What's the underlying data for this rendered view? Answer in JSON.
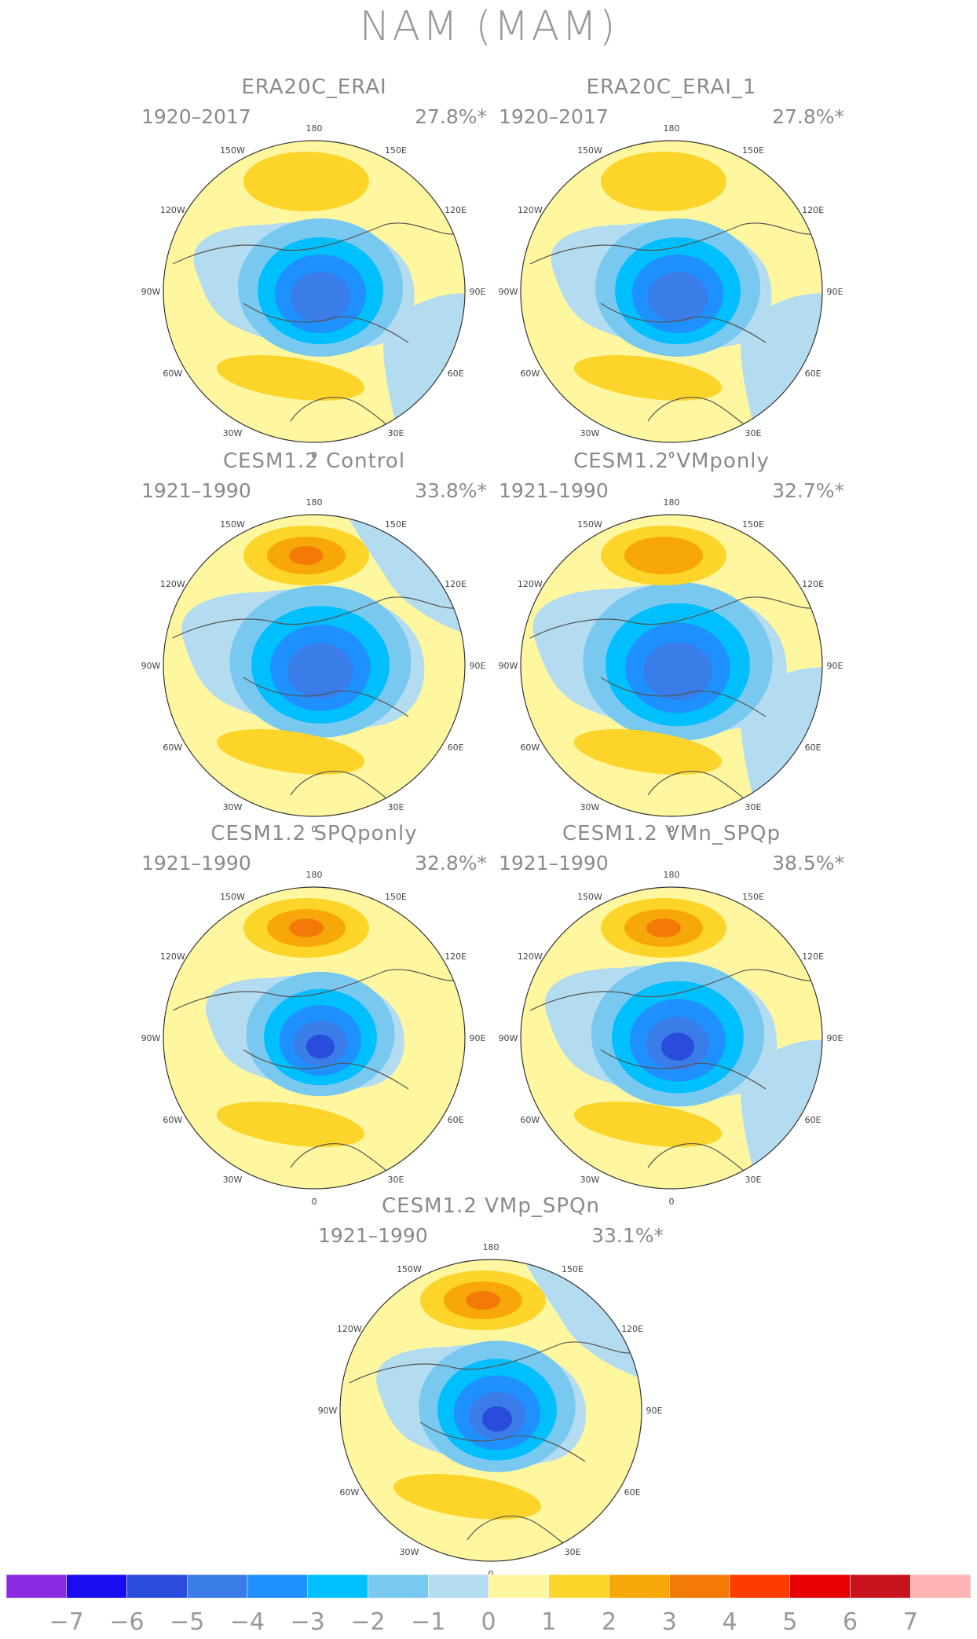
{
  "title": "NAM (MAM)",
  "lon_labels": [
    "180",
    "150E",
    "120E",
    "90E",
    "60E",
    "30E",
    "0",
    "30W",
    "60W",
    "90W",
    "120W",
    "150W"
  ],
  "panels": [
    {
      "title": "ERA20C_ERAI",
      "years": "1920–2017",
      "variance": "27.8%*",
      "pos_anomaly": 1.9,
      "blue_extent": 1.0,
      "neg_min": -4.4,
      "bluefield": "atlantic"
    },
    {
      "title": "ERA20C_ERAI_1",
      "years": "1920–2017",
      "variance": "27.8%*",
      "pos_anomaly": 1.9,
      "blue_extent": 1.0,
      "neg_min": -4.4,
      "bluefield": "atlantic"
    },
    {
      "title": "CESM1.2 Control",
      "years": "1921–1990",
      "variance": "33.8%*",
      "pos_anomaly": 3.3,
      "blue_extent": 1.1,
      "neg_min": -4.6,
      "bluefield": "pacific"
    },
    {
      "title": "CESM1.2 VMponly",
      "years": "1921–1990",
      "variance": "32.7%*",
      "pos_anomaly": 2.4,
      "blue_extent": 1.15,
      "neg_min": -4.8,
      "bluefield": "atlantic"
    },
    {
      "title": "CESM1.2 SPQponly",
      "years": "1921–1990",
      "variance": "32.8%*",
      "pos_anomaly": 3.2,
      "blue_extent": 0.9,
      "neg_min": -6.3,
      "bluefield": "none"
    },
    {
      "title": "CESM1.2 VMn_SPQp",
      "years": "1921–1990",
      "variance": "38.5%*",
      "pos_anomaly": 3.5,
      "blue_extent": 1.05,
      "neg_min": -5.3,
      "bluefield": "atlantic"
    },
    {
      "title": "CESM1.2 VMp_SPQn",
      "years": "1921–1990",
      "variance": "33.1%*",
      "pos_anomaly": 3.4,
      "blue_extent": 0.95,
      "neg_min": -5.5,
      "bluefield": "pacific"
    }
  ],
  "colorbar": {
    "labels": [
      "−7",
      "−6",
      "−5",
      "−4",
      "−3",
      "−2",
      "−1",
      "0",
      "1",
      "2",
      "3",
      "4",
      "5",
      "6",
      "7"
    ],
    "colors": [
      "#8a2be2",
      "#1a0cf0",
      "#2a4cdc",
      "#3a7ce8",
      "#1e90ff",
      "#00bfff",
      "#78c8f0",
      "#b4dcf0",
      "#fff79f",
      "#fcd42a",
      "#f8a70a",
      "#f47a08",
      "#ff3b00",
      "#e80000",
      "#c8141e",
      "#ffb4b4"
    ]
  }
}
